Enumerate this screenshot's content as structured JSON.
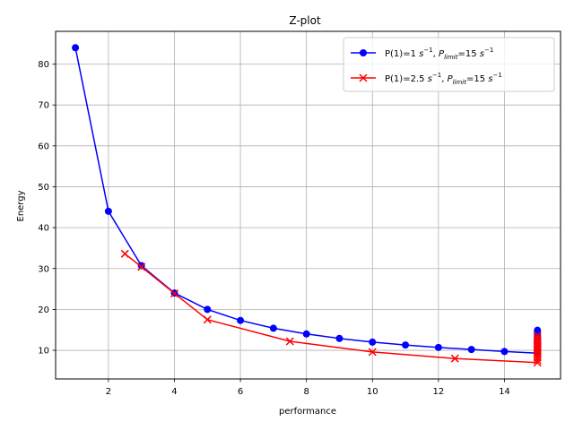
{
  "chart_data": {
    "type": "line",
    "title": "Z-plot",
    "xlabel": "performance",
    "ylabel": "Energy",
    "xlim": [
      0.4,
      15.7
    ],
    "ylim": [
      3.0,
      88.0
    ],
    "xticks": [
      2,
      4,
      6,
      8,
      10,
      12,
      14
    ],
    "yticks": [
      10,
      20,
      30,
      40,
      50,
      60,
      70,
      80
    ],
    "grid": true,
    "legend_position": "top-right",
    "series": [
      {
        "name_parts": [
          "P(1)=1 ",
          "s",
          "−1",
          ", ",
          "P",
          "limit",
          "=15 ",
          "s",
          "−1"
        ],
        "color": "#0000ff",
        "marker": "circle",
        "x": [
          1,
          2,
          3,
          4,
          5,
          6,
          7,
          8,
          9,
          10,
          11,
          12,
          13,
          14,
          15,
          15,
          15,
          15,
          15,
          15,
          15,
          15,
          15,
          15,
          15
        ],
        "y": [
          84.0,
          44.0,
          30.7,
          24.0,
          20.0,
          17.3,
          15.4,
          14.0,
          12.9,
          12.0,
          11.3,
          10.7,
          10.2,
          9.7,
          9.3,
          9.6,
          10.2,
          10.8,
          11.4,
          12.0,
          12.6,
          13.2,
          13.8,
          14.4,
          14.9
        ]
      },
      {
        "name_parts": [
          "P(1)=2.5 ",
          "s",
          "−1",
          ", ",
          "P",
          "limit",
          "=15 ",
          "s",
          "−1"
        ],
        "color": "#ff0000",
        "marker": "x",
        "x": [
          2.5,
          3,
          4,
          5,
          7.5,
          10,
          12.5,
          15,
          15,
          15,
          15,
          15,
          15,
          15,
          15,
          15,
          15,
          15,
          15
        ],
        "y": [
          33.6,
          30.4,
          23.9,
          17.5,
          12.2,
          9.6,
          8.0,
          7.0,
          7.6,
          8.2,
          8.8,
          9.4,
          10.0,
          10.6,
          11.2,
          11.8,
          12.4,
          13.0,
          13.6
        ]
      }
    ]
  }
}
